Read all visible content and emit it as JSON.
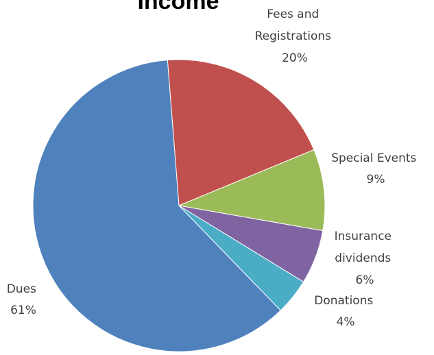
{
  "chart_data": {
    "type": "pie",
    "title": "Income",
    "slices": [
      {
        "label": "Dues",
        "value": 61,
        "value_label": "61%",
        "color": "#4F81BD"
      },
      {
        "label": "Fees and Registrations",
        "value": 20,
        "value_label": "20%",
        "color": "#C0504D"
      },
      {
        "label": "Special Events",
        "value": 9,
        "value_label": "9%",
        "color": "#9BBB59"
      },
      {
        "label": "Insurance dividends",
        "value": 6,
        "value_label": "6%",
        "color": "#8064A2"
      },
      {
        "label": "Donations",
        "value": 4,
        "value_label": "4%",
        "color": "#4BACC6"
      }
    ],
    "legend": "none"
  }
}
